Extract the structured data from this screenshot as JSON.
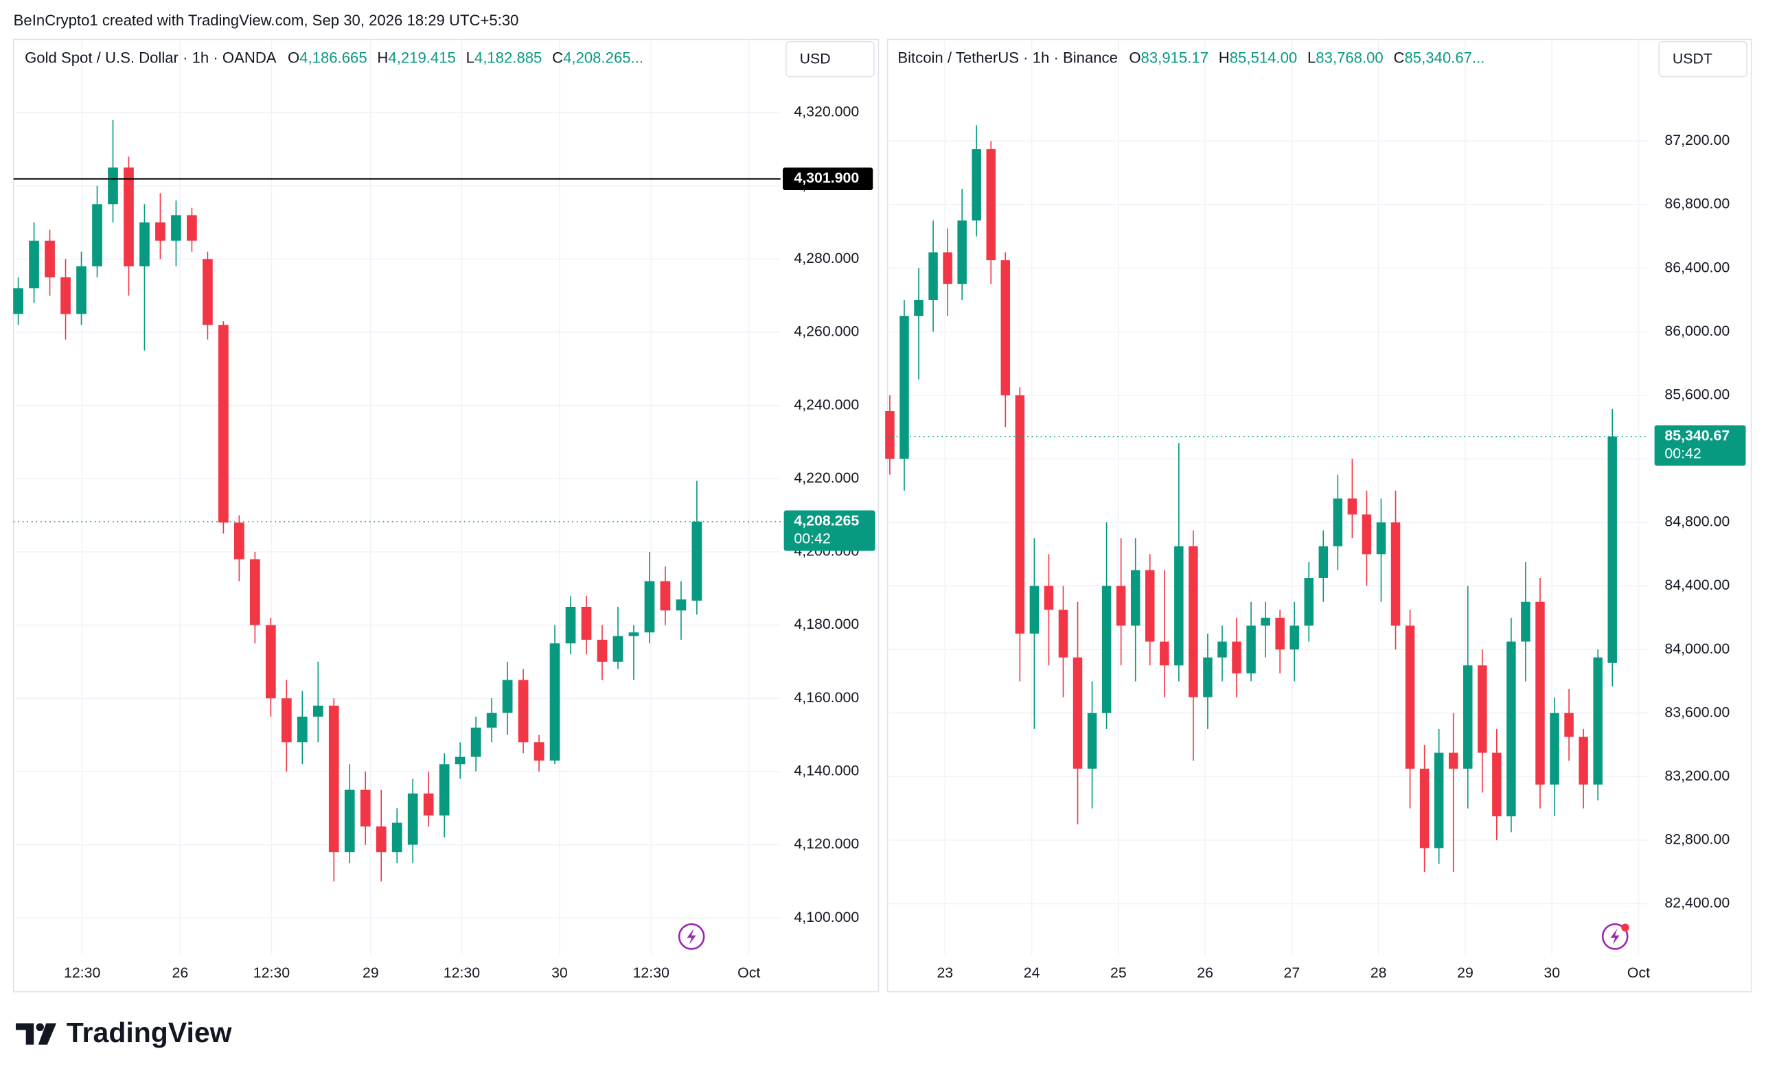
{
  "caption": "BeInCrypto1 created with TradingView.com, Sep 30, 2026 18:29 UTC+5:30",
  "logo": "TradingView",
  "chart_data": [
    {
      "type": "candlestick",
      "unit": "USD",
      "header": {
        "symbol": "Gold Spot / U.S. Dollar · 1h · OANDA",
        "ohlc": [
          {
            "key": "O",
            "value": "4,186.665"
          },
          {
            "key": "H",
            "value": "4,219.415"
          },
          {
            "key": "L",
            "value": "4,182.885"
          },
          {
            "key": "C",
            "value": "4,208.265..."
          }
        ]
      },
      "up_color": "#089981",
      "down_color": "#f23645",
      "grid": true,
      "xlim": [
        -0.3,
        48.3
      ],
      "xticks": [
        {
          "value": 4.05,
          "label": "12:30"
        },
        {
          "value": 10.26,
          "label": "26"
        },
        {
          "value": 16.05,
          "label": "12:30"
        },
        {
          "value": 22.33,
          "label": "29"
        },
        {
          "value": 28.1,
          "label": "12:30"
        },
        {
          "value": 34.3,
          "label": "30"
        },
        {
          "value": 40.1,
          "label": "12:30"
        },
        {
          "value": 46.3,
          "label": "Oct"
        }
      ],
      "ylim": [
        4090,
        4340
      ],
      "yticks": [
        {
          "value": 4100,
          "label": "4,100.000"
        },
        {
          "value": 4120,
          "label": "4,120.000"
        },
        {
          "value": 4140,
          "label": "4,140.000"
        },
        {
          "value": 4160,
          "label": "4,160.000"
        },
        {
          "value": 4180,
          "label": "4,180.000"
        },
        {
          "value": 4200,
          "label": "4,200.000"
        },
        {
          "value": 4220,
          "label": "4,220.000"
        },
        {
          "value": 4240,
          "label": "4,240.000"
        },
        {
          "value": 4260,
          "label": "4,260.000"
        },
        {
          "value": 4280,
          "label": "4,280.000"
        },
        {
          "value": 4300,
          "label": "4,300.000"
        },
        {
          "value": 4320,
          "label": "4,320.000"
        }
      ],
      "hline": {
        "value": 4301.9,
        "label": "4,301.900"
      },
      "price_label": "4,208.265",
      "countdown": "00:42",
      "candles": [
        [
          4265,
          4275,
          4262,
          4272
        ],
        [
          4272,
          4290,
          4268,
          4285
        ],
        [
          4285,
          4288,
          4270,
          4275
        ],
        [
          4275,
          4280,
          4258,
          4265
        ],
        [
          4265,
          4282,
          4262,
          4278
        ],
        [
          4278,
          4300,
          4275,
          4295
        ],
        [
          4295,
          4318,
          4290,
          4305
        ],
        [
          4305,
          4308,
          4270,
          4278
        ],
        [
          4278,
          4295,
          4255,
          4290
        ],
        [
          4290,
          4298,
          4280,
          4285
        ],
        [
          4285,
          4296,
          4278,
          4292
        ],
        [
          4292,
          4294,
          4282,
          4285
        ],
        [
          4280,
          4282,
          4258,
          4262
        ],
        [
          4262,
          4263,
          4205,
          4208
        ],
        [
          4208,
          4210,
          4192,
          4198
        ],
        [
          4198,
          4200,
          4175,
          4180
        ],
        [
          4180,
          4182,
          4155,
          4160
        ],
        [
          4160,
          4165,
          4140,
          4148
        ],
        [
          4148,
          4162,
          4142,
          4155
        ],
        [
          4155,
          4170,
          4148,
          4158
        ],
        [
          4158,
          4160,
          4110,
          4118
        ],
        [
          4118,
          4142,
          4115,
          4135
        ],
        [
          4135,
          4140,
          4120,
          4125
        ],
        [
          4125,
          4135,
          4110,
          4118
        ],
        [
          4118,
          4130,
          4115,
          4126
        ],
        [
          4120,
          4138,
          4115,
          4134
        ],
        [
          4134,
          4140,
          4125,
          4128
        ],
        [
          4128,
          4145,
          4122,
          4142
        ],
        [
          4142,
          4148,
          4138,
          4144
        ],
        [
          4144,
          4155,
          4140,
          4152
        ],
        [
          4152,
          4160,
          4148,
          4156
        ],
        [
          4156,
          4170,
          4150,
          4165
        ],
        [
          4165,
          4168,
          4145,
          4148
        ],
        [
          4148,
          4150,
          4140,
          4143
        ],
        [
          4143,
          4180,
          4142,
          4175
        ],
        [
          4175,
          4188,
          4172,
          4185
        ],
        [
          4185,
          4188,
          4172,
          4176
        ],
        [
          4176,
          4180,
          4165,
          4170
        ],
        [
          4170,
          4185,
          4168,
          4177
        ],
        [
          4177,
          4180,
          4165,
          4178
        ],
        [
          4178,
          4200,
          4175,
          4192
        ],
        [
          4192,
          4196,
          4180,
          4184
        ],
        [
          4184,
          4192,
          4176,
          4187
        ],
        [
          4186.665,
          4219.415,
          4182.885,
          4208.265
        ]
      ]
    },
    {
      "type": "candlestick",
      "unit": "USDT",
      "header": {
        "symbol": "Bitcoin / TetherUS · 1h · Binance",
        "ohlc": [
          {
            "key": "O",
            "value": "83,915.17"
          },
          {
            "key": "H",
            "value": "85,514.00"
          },
          {
            "key": "L",
            "value": "83,768.00"
          },
          {
            "key": "C",
            "value": "85,340.67..."
          }
        ]
      },
      "up_color": "#089981",
      "down_color": "#f23645",
      "grid": true,
      "xlim": [
        -0.16,
        52.45
      ],
      "xticks": [
        {
          "value": 3.82,
          "label": "23"
        },
        {
          "value": 9.82,
          "label": "24"
        },
        {
          "value": 15.82,
          "label": "25"
        },
        {
          "value": 21.82,
          "label": "26"
        },
        {
          "value": 27.82,
          "label": "27"
        },
        {
          "value": 33.82,
          "label": "28"
        },
        {
          "value": 39.82,
          "label": "29"
        },
        {
          "value": 45.82,
          "label": "30"
        },
        {
          "value": 51.82,
          "label": "Oct"
        }
      ],
      "ylim": [
        82080,
        87840
      ],
      "yticks": [
        {
          "value": 82400,
          "label": "82,400.00"
        },
        {
          "value": 82800,
          "label": "82,800.00"
        },
        {
          "value": 83200,
          "label": "83,200.00"
        },
        {
          "value": 83600,
          "label": "83,600.00"
        },
        {
          "value": 84000,
          "label": "84,000.00"
        },
        {
          "value": 84400,
          "label": "84,400.00"
        },
        {
          "value": 84800,
          "label": "84,800.00"
        },
        {
          "value": 85200,
          "label": "85,200.00"
        },
        {
          "value": 85600,
          "label": "85,600.00"
        },
        {
          "value": 86000,
          "label": "86,000.00"
        },
        {
          "value": 86400,
          "label": "86,400.00"
        },
        {
          "value": 86800,
          "label": "86,800.00"
        },
        {
          "value": 87200,
          "label": "87,200.00"
        }
      ],
      "price_label": "85,340.67",
      "countdown": "00:42",
      "candles": [
        [
          85500,
          85600,
          85100,
          85200
        ],
        [
          85200,
          86200,
          85000,
          86100
        ],
        [
          86100,
          86400,
          85700,
          86200
        ],
        [
          86200,
          86700,
          86000,
          86500
        ],
        [
          86500,
          86650,
          86100,
          86300
        ],
        [
          86300,
          86900,
          86200,
          86700
        ],
        [
          86700,
          87300,
          86600,
          87150
        ],
        [
          87150,
          87200,
          86300,
          86450
        ],
        [
          86450,
          86500,
          85400,
          85600
        ],
        [
          85600,
          85650,
          83800,
          84100
        ],
        [
          84100,
          84700,
          83500,
          84400
        ],
        [
          84400,
          84600,
          83900,
          84250
        ],
        [
          84250,
          84400,
          83700,
          83950
        ],
        [
          83950,
          84300,
          82900,
          83250
        ],
        [
          83250,
          83800,
          83000,
          83600
        ],
        [
          83600,
          84800,
          83500,
          84400
        ],
        [
          84400,
          84700,
          83900,
          84150
        ],
        [
          84150,
          84700,
          83800,
          84500
        ],
        [
          84500,
          84600,
          83900,
          84050
        ],
        [
          84050,
          84500,
          83700,
          83900
        ],
        [
          83900,
          85300,
          83800,
          84650
        ],
        [
          84650,
          84750,
          83300,
          83700
        ],
        [
          83700,
          84100,
          83500,
          83950
        ],
        [
          83950,
          84150,
          83800,
          84050
        ],
        [
          84050,
          84200,
          83700,
          83850
        ],
        [
          83850,
          84300,
          83800,
          84150
        ],
        [
          84150,
          84300,
          83950,
          84200
        ],
        [
          84200,
          84250,
          83850,
          84000
        ],
        [
          84000,
          84300,
          83800,
          84150
        ],
        [
          84150,
          84550,
          84050,
          84450
        ],
        [
          84450,
          84750,
          84300,
          84650
        ],
        [
          84650,
          85100,
          84500,
          84950
        ],
        [
          84950,
          85200,
          84700,
          84850
        ],
        [
          84850,
          85000,
          84400,
          84600
        ],
        [
          84600,
          84950,
          84300,
          84800
        ],
        [
          84800,
          85000,
          84000,
          84150
        ],
        [
          84150,
          84250,
          83000,
          83250
        ],
        [
          83250,
          83400,
          82600,
          82750
        ],
        [
          82750,
          83500,
          82650,
          83350
        ],
        [
          83350,
          83600,
          82600,
          83250
        ],
        [
          83250,
          84400,
          83000,
          83900
        ],
        [
          83900,
          84000,
          83100,
          83350
        ],
        [
          83350,
          83500,
          82800,
          82950
        ],
        [
          82950,
          84200,
          82850,
          84050
        ],
        [
          84050,
          84550,
          83800,
          84300
        ],
        [
          84300,
          84450,
          83000,
          83150
        ],
        [
          83150,
          83700,
          82950,
          83600
        ],
        [
          83600,
          83750,
          83300,
          83450
        ],
        [
          83450,
          83500,
          83000,
          83150
        ],
        [
          83150,
          84000,
          83050,
          83950
        ],
        [
          83915.17,
          85514.0,
          83768.0,
          85340.67
        ]
      ]
    }
  ]
}
